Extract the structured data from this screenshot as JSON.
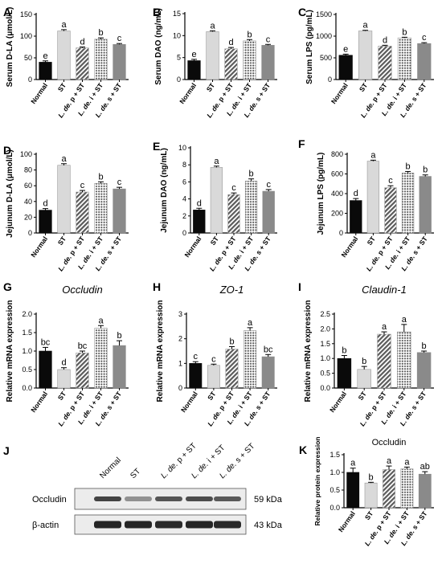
{
  "colors": {
    "normal": "#0a0a0a",
    "st": "#d9d9d9",
    "p": "#6e6e6e",
    "i": "#bdbdbd",
    "s": "#8a8a8a"
  },
  "categories": [
    "Normal",
    "ST",
    "L. de. p + ST",
    "L. de. i + ST",
    "L. de. s + ST"
  ],
  "chart_data": [
    {
      "type": "bar",
      "panel": "A",
      "ylabel": "Serum D-LA (μmol/L)",
      "title": "",
      "categories": [
        "Normal",
        "ST",
        "L. de. p + ST",
        "L. de. i + ST",
        "L. de. s + ST"
      ],
      "values": [
        40,
        112,
        73,
        93,
        81
      ],
      "errors": [
        3,
        3,
        2,
        3,
        2
      ],
      "letters": [
        "e",
        "a",
        "d",
        "b",
        "c"
      ],
      "ylim": [
        0,
        150
      ],
      "yticks": [
        0,
        50,
        100,
        150
      ]
    },
    {
      "type": "bar",
      "panel": "B",
      "ylabel": "Serum DAO (ng/mL)",
      "title": "",
      "categories": [
        "Normal",
        "ST",
        "L. de. p + ST",
        "L. de. i + ST",
        "L. de. s + ST"
      ],
      "values": [
        4.3,
        10.9,
        7.0,
        8.8,
        7.8
      ],
      "errors": [
        0.3,
        0.2,
        0.3,
        0.3,
        0.2
      ],
      "letters": [
        "e",
        "a",
        "d",
        "b",
        "c"
      ],
      "ylim": [
        0,
        15
      ],
      "yticks": [
        0,
        5,
        10,
        15
      ]
    },
    {
      "type": "bar",
      "panel": "C",
      "ylabel": "Serum LPS (pg/mL)",
      "title": "",
      "categories": [
        "Normal",
        "ST",
        "L. de. p + ST",
        "L. de. i + ST",
        "L. de. s + ST"
      ],
      "values": [
        560,
        1120,
        770,
        960,
        830
      ],
      "errors": [
        25,
        15,
        20,
        15,
        20
      ],
      "letters": [
        "e",
        "a",
        "d",
        "b",
        "c"
      ],
      "ylim": [
        0,
        1500
      ],
      "yticks": [
        0,
        500,
        1000,
        1500
      ]
    },
    {
      "type": "bar",
      "panel": "D",
      "ylabel": "Jejunum D-LA (μmol/L)",
      "title": "",
      "categories": [
        "Normal",
        "ST",
        "L. de. p + ST",
        "L. de. i + ST",
        "L. de. s + ST"
      ],
      "values": [
        29,
        86,
        52,
        63,
        56
      ],
      "errors": [
        2,
        2,
        2,
        2,
        2
      ],
      "letters": [
        "d",
        "a",
        "c",
        "b",
        "c"
      ],
      "ylim": [
        0,
        100
      ],
      "yticks": [
        0,
        20,
        40,
        60,
        80,
        100
      ]
    },
    {
      "type": "bar",
      "panel": "E",
      "ylabel": "Jejunum DAO (ng/mL)",
      "title": "",
      "categories": [
        "Normal",
        "ST",
        "L. de. p + ST",
        "L. de. i + ST",
        "L. de. s + ST"
      ],
      "values": [
        2.7,
        7.7,
        4.5,
        6.1,
        4.9
      ],
      "errors": [
        0.2,
        0.15,
        0.2,
        0.25,
        0.2
      ],
      "letters": [
        "d",
        "a",
        "c",
        "b",
        "c"
      ],
      "ylim": [
        0,
        10
      ],
      "yticks": [
        0,
        2,
        4,
        6,
        8,
        10
      ]
    },
    {
      "type": "bar",
      "panel": "F",
      "ylabel": "Jejunum LPS (pg/mL)",
      "title": "",
      "categories": [
        "Normal",
        "ST",
        "L. de. p + ST",
        "L. de. i + ST",
        "L. de. s + ST"
      ],
      "values": [
        330,
        730,
        460,
        610,
        575
      ],
      "errors": [
        20,
        10,
        20,
        15,
        15
      ],
      "letters": [
        "d",
        "a",
        "c",
        "b",
        "b"
      ],
      "ylim": [
        0,
        800
      ],
      "yticks": [
        0,
        200,
        400,
        600,
        800
      ]
    },
    {
      "type": "bar",
      "panel": "G",
      "ylabel": "Relative mRNA expression",
      "title": "Occludin",
      "categories": [
        "Normal",
        "ST",
        "L. de. p + ST",
        "L. de. i + ST",
        "L. de. s + ST"
      ],
      "values": [
        1.0,
        0.5,
        0.95,
        1.62,
        1.15
      ],
      "errors": [
        0.1,
        0.05,
        0.05,
        0.07,
        0.13
      ],
      "letters": [
        "bc",
        "d",
        "bc",
        "a",
        "b"
      ],
      "ylim": [
        0,
        2.0
      ],
      "yticks": [
        0.0,
        0.5,
        1.0,
        1.5,
        2.0
      ]
    },
    {
      "type": "bar",
      "panel": "H",
      "ylabel": "Relative mRNA expression",
      "title": "ZO-1",
      "categories": [
        "Normal",
        "ST",
        "L. de. p + ST",
        "L. de. i + ST",
        "L. de. s + ST"
      ],
      "values": [
        1.0,
        0.92,
        1.58,
        2.33,
        1.27
      ],
      "errors": [
        0.07,
        0.05,
        0.1,
        0.12,
        0.09
      ],
      "letters": [
        "c",
        "c",
        "b",
        "a",
        "bc"
      ],
      "ylim": [
        0,
        3
      ],
      "yticks": [
        0,
        1,
        2,
        3
      ]
    },
    {
      "type": "bar",
      "panel": "I",
      "ylabel": "Relative mRNA expression",
      "title": "Claudin-1",
      "categories": [
        "Normal",
        "ST",
        "L. de. p + ST",
        "L. de. i + ST",
        "L. de. s + ST"
      ],
      "values": [
        1.0,
        0.63,
        1.82,
        1.9,
        1.2
      ],
      "errors": [
        0.1,
        0.1,
        0.08,
        0.25,
        0.05
      ],
      "letters": [
        "b",
        "b",
        "a",
        "a",
        "b"
      ],
      "ylim": [
        0,
        2.5
      ],
      "yticks": [
        0.0,
        0.5,
        1.0,
        1.5,
        2.0,
        2.5
      ]
    },
    {
      "type": "bar",
      "panel": "K",
      "ylabel": "Relative protein expression",
      "title": "Occludin",
      "categories": [
        "Normal",
        "ST",
        "L. de. p + ST",
        "L. de. i + ST",
        "L. de. s + ST"
      ],
      "values": [
        1.0,
        0.7,
        1.08,
        1.1,
        0.95
      ],
      "errors": [
        0.12,
        0.02,
        0.1,
        0.05,
        0.07
      ],
      "letters": [
        "a",
        "b",
        "a",
        "a",
        "ab"
      ],
      "ylim": [
        0,
        1.5
      ],
      "yticks": [
        0.0,
        0.5,
        1.0,
        1.5
      ]
    }
  ],
  "western": {
    "panel": "J",
    "lanes": [
      "Normal",
      "ST",
      "L. de. p + ST",
      "L. de. i + ST",
      "L. de. s + ST"
    ],
    "rows": [
      {
        "label": "Occludin",
        "size": "59 kDa",
        "intensity": [
          0.78,
          0.42,
          0.7,
          0.74,
          0.68
        ]
      },
      {
        "label": "β-actin",
        "size": "43 kDa",
        "intensity": [
          0.92,
          0.92,
          0.9,
          0.92,
          0.9
        ]
      }
    ]
  }
}
